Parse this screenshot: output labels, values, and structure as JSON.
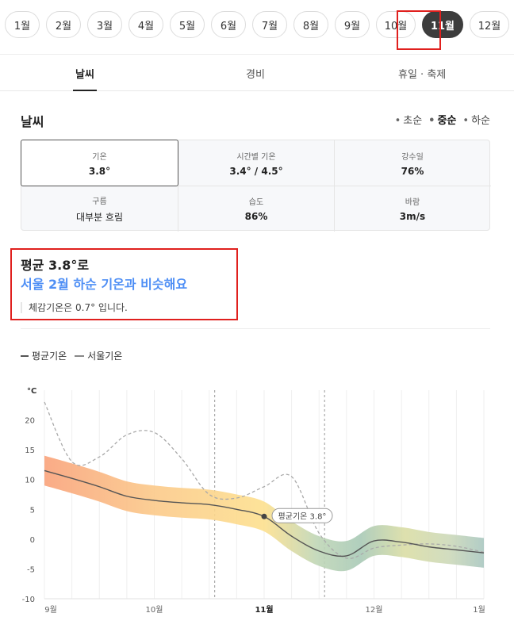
{
  "months": {
    "items": [
      "1월",
      "2월",
      "3월",
      "4월",
      "5월",
      "6월",
      "7월",
      "8월",
      "9월",
      "10월",
      "11월",
      "12월"
    ],
    "selected": "11월"
  },
  "tabs": [
    {
      "label": "날씨",
      "active": true
    },
    {
      "label": "경비",
      "active": false
    },
    {
      "label": "휴일 · 축제",
      "active": false
    }
  ],
  "weather": {
    "title": "날씨",
    "periods": [
      {
        "label": "초순",
        "active": false
      },
      {
        "label": "중순",
        "active": true
      },
      {
        "label": "하순",
        "active": false
      }
    ],
    "cells": [
      {
        "label": "기온",
        "value": "3.8°"
      },
      {
        "label": "시간별 기온",
        "value": "3.4° / 4.5°"
      },
      {
        "label": "강수일",
        "value": "76%"
      },
      {
        "label": "구름",
        "value": "대부분 흐림"
      },
      {
        "label": "습도",
        "value": "86%"
      },
      {
        "label": "바람",
        "value": "3m/s"
      }
    ]
  },
  "summary": {
    "line1": "평균 3.8°로",
    "line2": "서울 2월 하순 기온과 비슷해요",
    "feels": "체감기온은 0.7° 입니다."
  },
  "legend": {
    "avg": "평균기온",
    "seoul": "서울기온"
  },
  "chart_data": {
    "type": "line",
    "ylabel": "°C",
    "ylim": [
      -10,
      25
    ],
    "yticks": [
      -10,
      -5,
      0,
      5,
      10,
      15,
      20
    ],
    "xticks": [
      {
        "label": "9월",
        "pos": 0,
        "bold": false
      },
      {
        "label": "10월",
        "pos": 1,
        "bold": false
      },
      {
        "label": "11월",
        "pos": 2,
        "bold": true
      },
      {
        "label": "12월",
        "pos": 3,
        "bold": false
      },
      {
        "label": "1월",
        "pos": 4,
        "bold": false
      }
    ],
    "x": [
      0,
      0.25,
      0.5,
      0.75,
      1.0,
      1.25,
      1.5,
      1.75,
      2.0,
      2.25,
      2.5,
      2.75,
      3.0,
      3.25,
      3.5,
      3.75,
      4.0
    ],
    "series": [
      {
        "name": "평균기온",
        "values": [
          11.5,
          10.2,
          8.8,
          7.2,
          6.5,
          6.1,
          5.8,
          5.0,
          3.8,
          0.5,
          -2.0,
          -2.8,
          -0.3,
          -0.5,
          -1.3,
          -1.8,
          -2.3
        ]
      },
      {
        "name": "서울기온",
        "values": [
          23.0,
          13.0,
          13.8,
          17.5,
          17.9,
          13.5,
          7.5,
          6.9,
          8.8,
          10.5,
          1.0,
          -3.2,
          -1.5,
          -1.0,
          -0.8,
          -1.2,
          -2.2
        ]
      }
    ],
    "band_half_width": 2.5,
    "marker": {
      "x": 2.0,
      "value": 3.8,
      "label": "평균기온 3.8°"
    },
    "reference_lines_x": [
      1.55,
      2.55
    ]
  }
}
